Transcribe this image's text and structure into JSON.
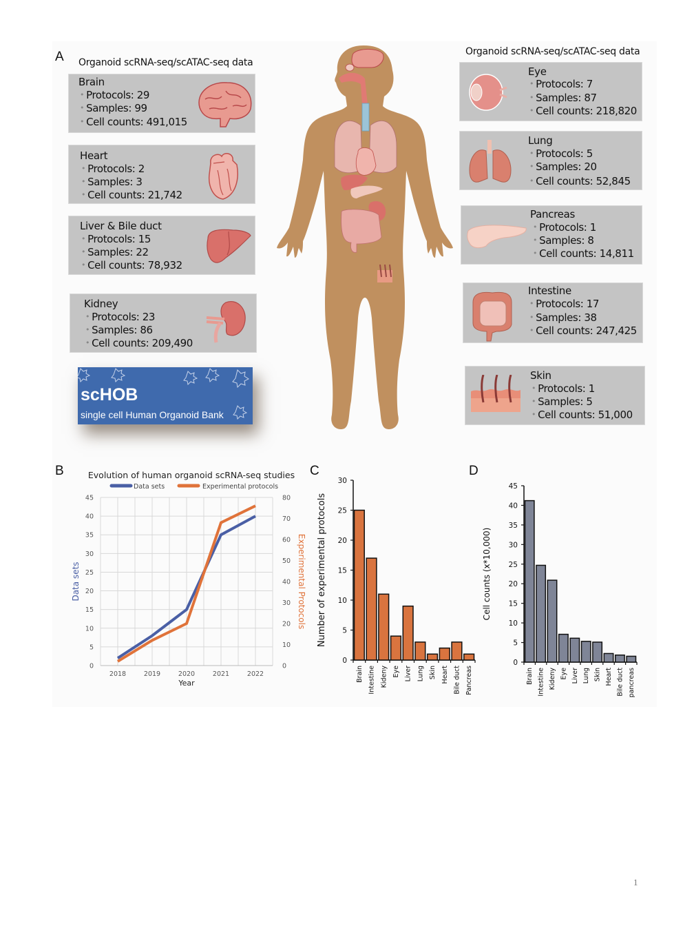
{
  "panels": {
    "a": "A",
    "b": "B",
    "c": "C",
    "d": "D"
  },
  "section_a": {
    "left_title": "Organoid scRNA-seq/scATAC-seq data",
    "right_title": "Organoid scRNA-seq/scATAC-seq data",
    "organs_left": [
      {
        "name": "Brain",
        "protocols": "Protocols: 29",
        "samples": "Samples: 99",
        "cells": "Cell counts: 491,015",
        "icon": "brain-icon"
      },
      {
        "name": "Heart",
        "protocols": "Protocols: 2",
        "samples": "Samples: 3",
        "cells": "Cell counts: 21,742",
        "icon": "heart-icon"
      },
      {
        "name": "Liver & Bile duct",
        "protocols": "Protocols: 15",
        "samples": "Samples: 22",
        "cells": "Cell counts: 78,932",
        "icon": "liver-icon"
      },
      {
        "name": "Kidney",
        "protocols": "Protocols: 23",
        "samples": "Samples: 86",
        "cells": "Cell counts: 209,490",
        "icon": "kidney-icon"
      }
    ],
    "organs_right": [
      {
        "name": "Eye",
        "protocols": "Protocols: 7",
        "samples": "Samples: 87",
        "cells": "Cell counts: 218,820",
        "icon": "eye-icon"
      },
      {
        "name": "Lung",
        "protocols": "Protocols: 5",
        "samples": "Samples: 20",
        "cells": "Cell counts: 52,845",
        "icon": "lung-icon"
      },
      {
        "name": "Pancreas",
        "protocols": "Protocols: 1",
        "samples": "Samples: 8",
        "cells": "Cell counts: 14,811",
        "icon": "pancreas-icon"
      },
      {
        "name": "Intestine",
        "protocols": "Protocols: 17",
        "samples": "Samples: 38",
        "cells": "Cell counts: 247,425",
        "icon": "intestine-icon"
      },
      {
        "name": "Skin",
        "protocols": "Protocols: 1",
        "samples": "Samples: 5",
        "cells": "Cell counts: 51,000",
        "icon": "skin-icon"
      }
    ],
    "logo": {
      "title": "scHOB",
      "subtitle": "single cell Human Organoid Bank"
    },
    "colors": {
      "card": "#c4c4c4",
      "body": "#c0905f",
      "organ": "#d2706a",
      "logo": "#3f6aad"
    }
  },
  "chart_data": [
    {
      "type": "line",
      "title": "Evolution of human organoid scRNA-seq studies",
      "xlabel": "Year",
      "ylabel": "Data sets",
      "y2label": "Experimental Protocols",
      "x": [
        "2018",
        "2019",
        "2020",
        "2021",
        "2022"
      ],
      "ylim": [
        0,
        45
      ],
      "y2lim": [
        0,
        80
      ],
      "yticks": [
        "0",
        "5",
        "10",
        "15",
        "20",
        "25",
        "30",
        "35",
        "40",
        "45"
      ],
      "y2ticks": [
        "0",
        "10",
        "20",
        "30",
        "40",
        "50",
        "60",
        "70",
        "80"
      ],
      "grid": true,
      "legend": "top",
      "series": [
        {
          "name": "Data sets",
          "axis": "left",
          "color": "#4a5fa5",
          "values": [
            2,
            8,
            15,
            35,
            40
          ]
        },
        {
          "name": "Experimental protocols",
          "axis": "right",
          "color": "#e0733a",
          "values": [
            2,
            12,
            20,
            68,
            76
          ]
        }
      ]
    },
    {
      "type": "bar",
      "title": "",
      "xlabel": "",
      "ylabel": "Number of experimental protocols",
      "categories": [
        "Brain",
        "Intestine",
        "Kideny",
        "Eye",
        "Liver",
        "Lung",
        "Skin",
        "Heart",
        "Bile duct",
        "Pancreas"
      ],
      "values": [
        25,
        17,
        11,
        4,
        9,
        3,
        1,
        2,
        3,
        1
      ],
      "ylim": [
        0,
        30
      ],
      "yticks": [
        "0",
        "5",
        "10",
        "15",
        "20",
        "25",
        "30"
      ],
      "color": "#d9743f",
      "grid": false
    },
    {
      "type": "bar",
      "title": "",
      "xlabel": "",
      "ylabel": "Cell counts (x*10,000)",
      "categories": [
        "Brain",
        "Intestine",
        "Kideny",
        "Eye",
        "Liver",
        "Lung",
        "Skin",
        "Heart",
        "Bile duct",
        "pancreas"
      ],
      "values": [
        41.2,
        24.7,
        20.9,
        7.1,
        6.1,
        5.3,
        5.1,
        2.2,
        1.8,
        1.5
      ],
      "ylim": [
        0,
        45
      ],
      "yticks": [
        "0",
        "5",
        "10",
        "15",
        "20",
        "25",
        "30",
        "35",
        "40",
        "45"
      ],
      "color": "#7f8597",
      "grid": false
    }
  ],
  "footer": {
    "page_number": "1"
  }
}
